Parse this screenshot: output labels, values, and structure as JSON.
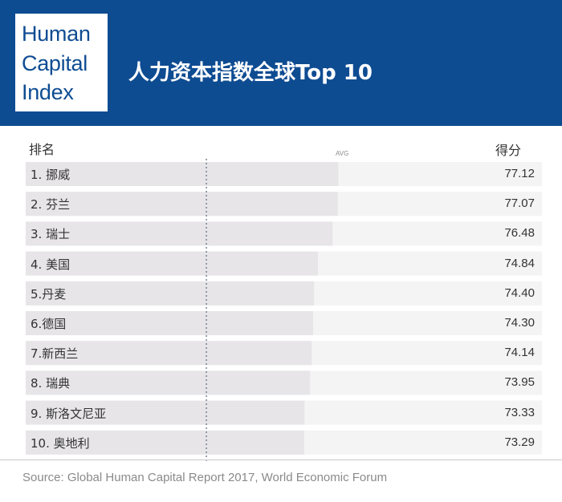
{
  "logo": {
    "lines": [
      "Human",
      "Capital",
      "Index"
    ]
  },
  "header": {
    "title": "人力资本指数全球Top 10"
  },
  "columns": {
    "rank": "排名",
    "score": "得分"
  },
  "avg_label": "AVG",
  "source": "Source: Global Human Capital Report 2017, World Economic Forum",
  "colors": {
    "header_bg": "#0e4c92",
    "bar_track": "#f4f4f4",
    "bar_fill": "#e7e5e8",
    "avg_line": "#6f7a8c"
  },
  "chart_data": {
    "type": "bar",
    "orientation": "horizontal",
    "categories": [
      "1. 挪威",
      "2. 芬兰",
      "3. 瑞士",
      "4. 美国",
      "5.丹麦",
      "6.德国",
      "7.新西兰",
      "8. 瑞典",
      "9. 斯洛文尼亚",
      "10. 奥地利"
    ],
    "values": [
      77.12,
      77.07,
      76.48,
      74.84,
      74.4,
      74.3,
      74.14,
      73.95,
      73.33,
      73.29
    ],
    "value_labels": [
      "77.12",
      "77.07",
      "76.48",
      "74.84",
      "74.40",
      "74.30",
      "74.14",
      "73.95",
      "73.33",
      "73.29"
    ],
    "xlim": [
      42,
      100
    ],
    "average": 62.3,
    "grid": false,
    "legend": "none"
  }
}
